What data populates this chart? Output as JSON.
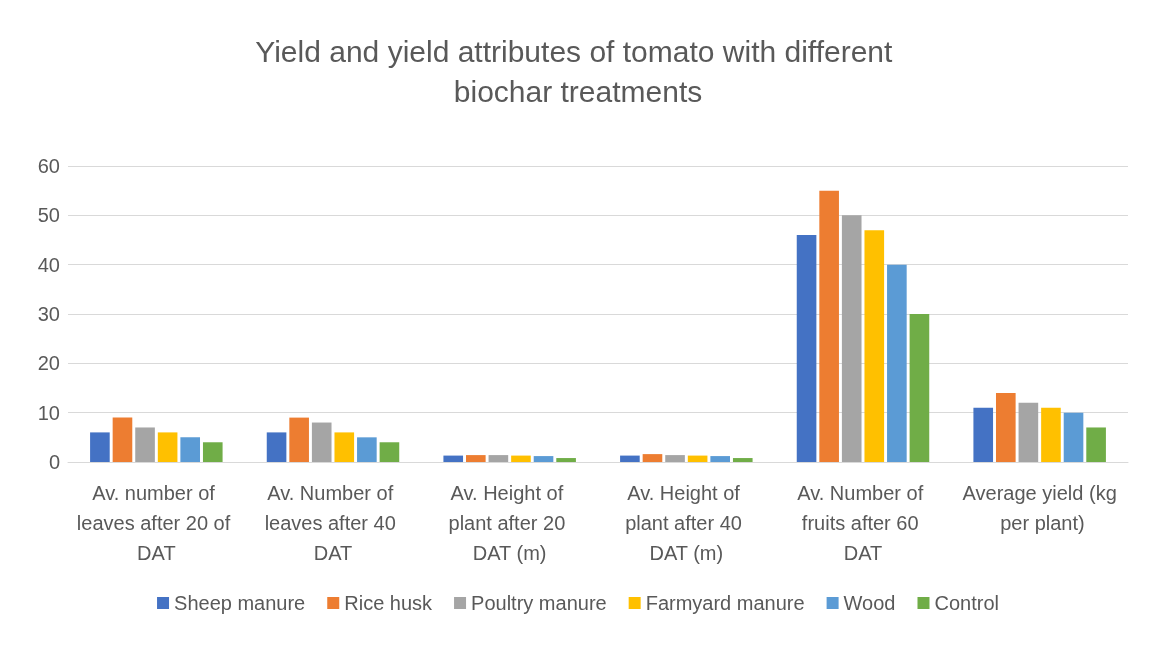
{
  "chart_data": {
    "type": "bar",
    "title": "Yield and yield attributes of tomato with different biochar treatments",
    "categories": [
      "Av. number of leaves after 20 of DAT",
      "Av. Number of leaves after 40 DAT",
      "Av. Height of plant after 20 DAT (m)",
      "Av. Height of plant after 40 DAT (m)",
      "Av. Number of fruits after 60 DAT",
      "Average yield (kg per plant)"
    ],
    "series": [
      {
        "name": "Sheep manure",
        "color": "#4472c4",
        "values": [
          6,
          6,
          1.3,
          1.3,
          46,
          11
        ]
      },
      {
        "name": "Rice husk",
        "color": "#ed7d31",
        "values": [
          9,
          9,
          1.4,
          1.6,
          55,
          14
        ]
      },
      {
        "name": "Poultry manure",
        "color": "#a5a5a5",
        "values": [
          7,
          8,
          1.4,
          1.4,
          50,
          12
        ]
      },
      {
        "name": "Farmyard manure",
        "color": "#ffc000",
        "values": [
          6,
          6,
          1.3,
          1.3,
          47,
          11
        ]
      },
      {
        "name": "Wood",
        "color": "#5b9bd5",
        "values": [
          5,
          5,
          1.2,
          1.2,
          40,
          10
        ]
      },
      {
        "name": "Control",
        "color": "#70ad47",
        "values": [
          4,
          4,
          0.8,
          0.8,
          30,
          7
        ]
      }
    ],
    "ylim": [
      0,
      60
    ],
    "yticks": [
      0,
      10,
      20,
      30,
      40,
      50,
      60
    ],
    "grid": "y",
    "legend": "bottom"
  }
}
